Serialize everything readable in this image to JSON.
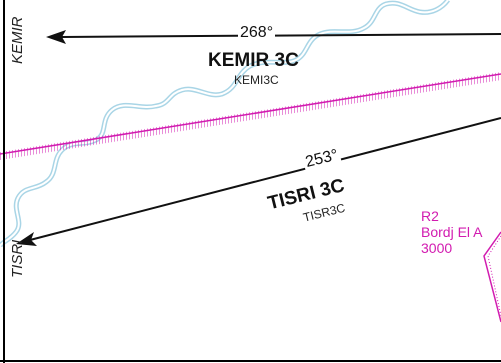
{
  "colors": {
    "river": "#a9d5e6",
    "restricted": "#d21bb0",
    "route": "#111111",
    "frame": "#000000"
  },
  "waypoints": [
    {
      "name": "KEMIR"
    },
    {
      "name": "TISRI"
    }
  ],
  "routes": [
    {
      "course": "268°",
      "procedure": "KEMIR 3C",
      "code": "KEMI3C"
    },
    {
      "course": "253°",
      "procedure": "TISRI 3C",
      "code": "TISR3C"
    }
  ],
  "restricted_area": {
    "id": "R2",
    "name": "Bordj El A",
    "altitude": "3000"
  }
}
